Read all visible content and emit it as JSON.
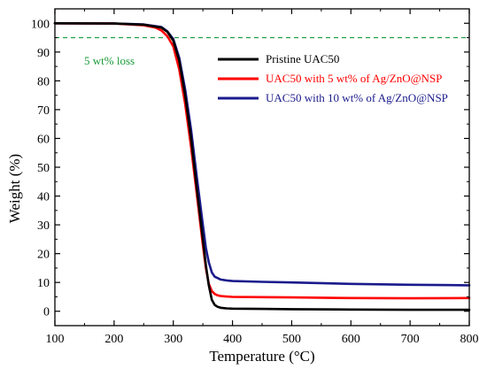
{
  "chart_data": {
    "type": "line",
    "xlabel": "Temperature (°C)",
    "ylabel": "Weight (%)",
    "xlim": [
      100,
      800
    ],
    "ylim": [
      -5,
      105
    ],
    "xticks": [
      100,
      200,
      300,
      400,
      500,
      600,
      700,
      800
    ],
    "yticks": [
      0,
      10,
      20,
      30,
      40,
      50,
      60,
      70,
      80,
      90,
      100
    ],
    "grid": false,
    "legend_position": "top-right",
    "reference_line": {
      "y": 95,
      "label": "5 wt% loss",
      "color": "#1a9a3a",
      "style": "dashed"
    },
    "series": [
      {
        "name": "Pristine UAC50",
        "color": "#000000",
        "x": [
          100,
          200,
          250,
          280,
          290,
          300,
          310,
          320,
          330,
          340,
          350,
          355,
          360,
          365,
          370,
          375,
          380,
          390,
          400,
          450,
          500,
          600,
          700,
          800
        ],
        "y": [
          100,
          99.9,
          99.5,
          98.5,
          97,
          94,
          87,
          75,
          60,
          42,
          25,
          16,
          9,
          4,
          2.2,
          1.5,
          1.2,
          1.0,
          0.9,
          0.8,
          0.7,
          0.6,
          0.5,
          0.5
        ]
      },
      {
        "name": "UAC50 with 5 wt% of Ag/ZnO@NSP",
        "color": "#ff0000",
        "x": [
          100,
          200,
          250,
          270,
          280,
          290,
          300,
          310,
          320,
          330,
          340,
          350,
          355,
          360,
          365,
          370,
          375,
          380,
          390,
          400,
          450,
          500,
          600,
          700,
          800
        ],
        "y": [
          100,
          99.9,
          99.3,
          98.5,
          97.5,
          95.5,
          92,
          84,
          72,
          57,
          40,
          23,
          15,
          9.5,
          7,
          6,
          5.5,
          5.3,
          5.1,
          5.0,
          4.9,
          4.8,
          4.6,
          4.5,
          4.6
        ]
      },
      {
        "name": "UAC50 with 10 wt% of Ag/ZnO@NSP",
        "color": "#1a1a8c",
        "x": [
          100,
          200,
          250,
          280,
          290,
          300,
          310,
          320,
          330,
          340,
          350,
          355,
          360,
          365,
          370,
          375,
          380,
          390,
          400,
          450,
          500,
          600,
          700,
          800
        ],
        "y": [
          100,
          99.9,
          99.6,
          98.7,
          97.2,
          94.5,
          88,
          77,
          63,
          46,
          30,
          22,
          17,
          13.5,
          12,
          11.5,
          11,
          10.7,
          10.5,
          10.2,
          10,
          9.5,
          9.2,
          9.0
        ]
      }
    ]
  }
}
